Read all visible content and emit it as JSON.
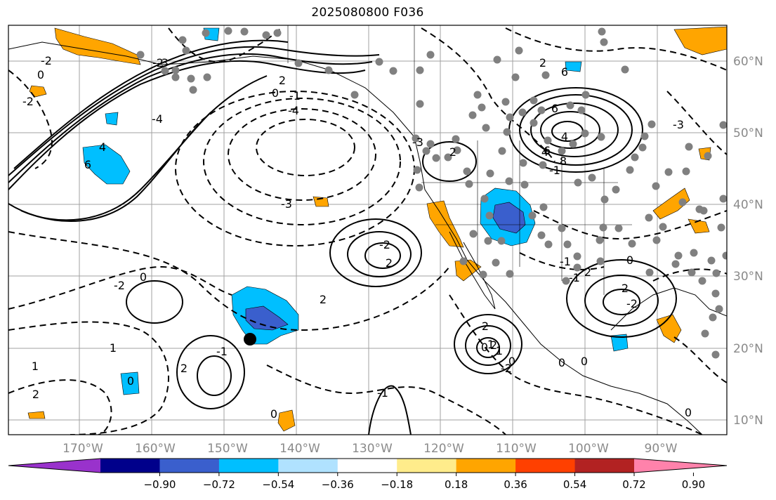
{
  "map": {
    "title": "2025080800 F036",
    "lon_labels": [
      "170°W",
      "160°W",
      "150°W",
      "140°W",
      "130°W",
      "120°W",
      "110°W",
      "100°W",
      "90°W"
    ],
    "lat_labels": [
      "60°N",
      "50°N",
      "40°N",
      "30°N",
      "20°N",
      "10°N"
    ],
    "contour_labels": [
      "-2",
      "0",
      "-2",
      "4",
      "6",
      "-4",
      "-2",
      "-3",
      "2",
      "0",
      "-1",
      "-4",
      "6",
      "4",
      "6",
      "-1",
      "-3",
      "-3",
      "2",
      "2",
      "-2",
      "6",
      "8",
      "4",
      "2",
      "-3",
      "2",
      "-2",
      "2",
      "-1",
      "0",
      "0",
      "-1",
      "2",
      "1",
      "0",
      "-2",
      "1",
      "2",
      "0",
      "-1",
      "0",
      "-1",
      "2",
      "0",
      "1",
      "0",
      "2",
      "1",
      "-2",
      "2",
      "0",
      "0"
    ],
    "colors": {
      "positive_orange": "#ffa500",
      "negative_light": "#00bfff",
      "negative_mid": "#3a5fcd",
      "station_dot": "#808080",
      "marker": "#000000"
    }
  },
  "colorbar": {
    "ticks": [
      "−0.90",
      "−0.72",
      "−0.54",
      "−0.36",
      "−0.18",
      "0.18",
      "0.36",
      "0.54",
      "0.72",
      "0.90"
    ],
    "colors": [
      "#9932cc",
      "#00008b",
      "#3a5fcd",
      "#00bfff",
      "#b0e2ff",
      "#ffffff",
      "#ffec8b",
      "#ffa500",
      "#ff4000",
      "#b22222",
      "#ff82ab"
    ]
  }
}
